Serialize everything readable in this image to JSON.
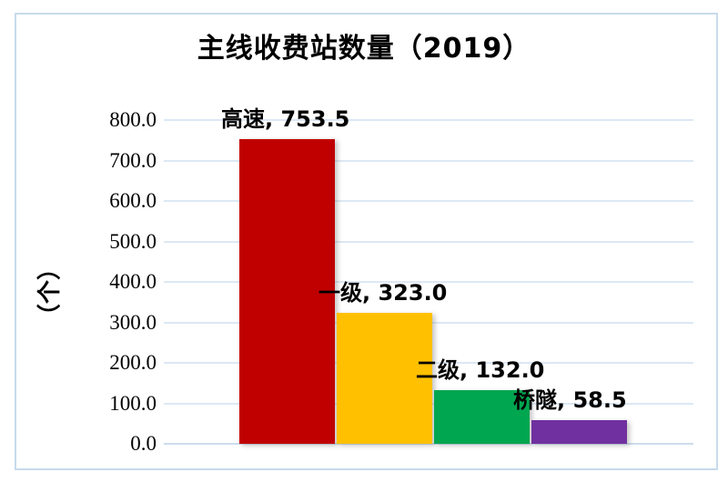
{
  "chart": {
    "title": "主线收费站数量（2019）",
    "y_axis_title": "（个）"
  },
  "chart_data": {
    "type": "bar",
    "title": "主线收费站数量（2019）",
    "categories": [
      "高速",
      "一级",
      "二级",
      "桥隧"
    ],
    "values": [
      753.5,
      323.0,
      132.0,
      58.5
    ],
    "data_labels": [
      "高速, 753.5",
      "一级, 323.0",
      "二级, 132.0",
      "桥隧, 58.5"
    ],
    "colors": [
      "#C00000",
      "#FFC000",
      "#00A650",
      "#7030A0"
    ],
    "xlabel": "",
    "ylabel": "（个）",
    "ylim": [
      0,
      800
    ],
    "ytick_step": 100,
    "ytick_labels": [
      "0.0",
      "100.0",
      "200.0",
      "300.0",
      "400.0",
      "500.0",
      "600.0",
      "700.0",
      "800.0"
    ],
    "grid": true,
    "legend": false,
    "gridline_color": "#dce8f5",
    "frame_color": "#c7dbec"
  }
}
